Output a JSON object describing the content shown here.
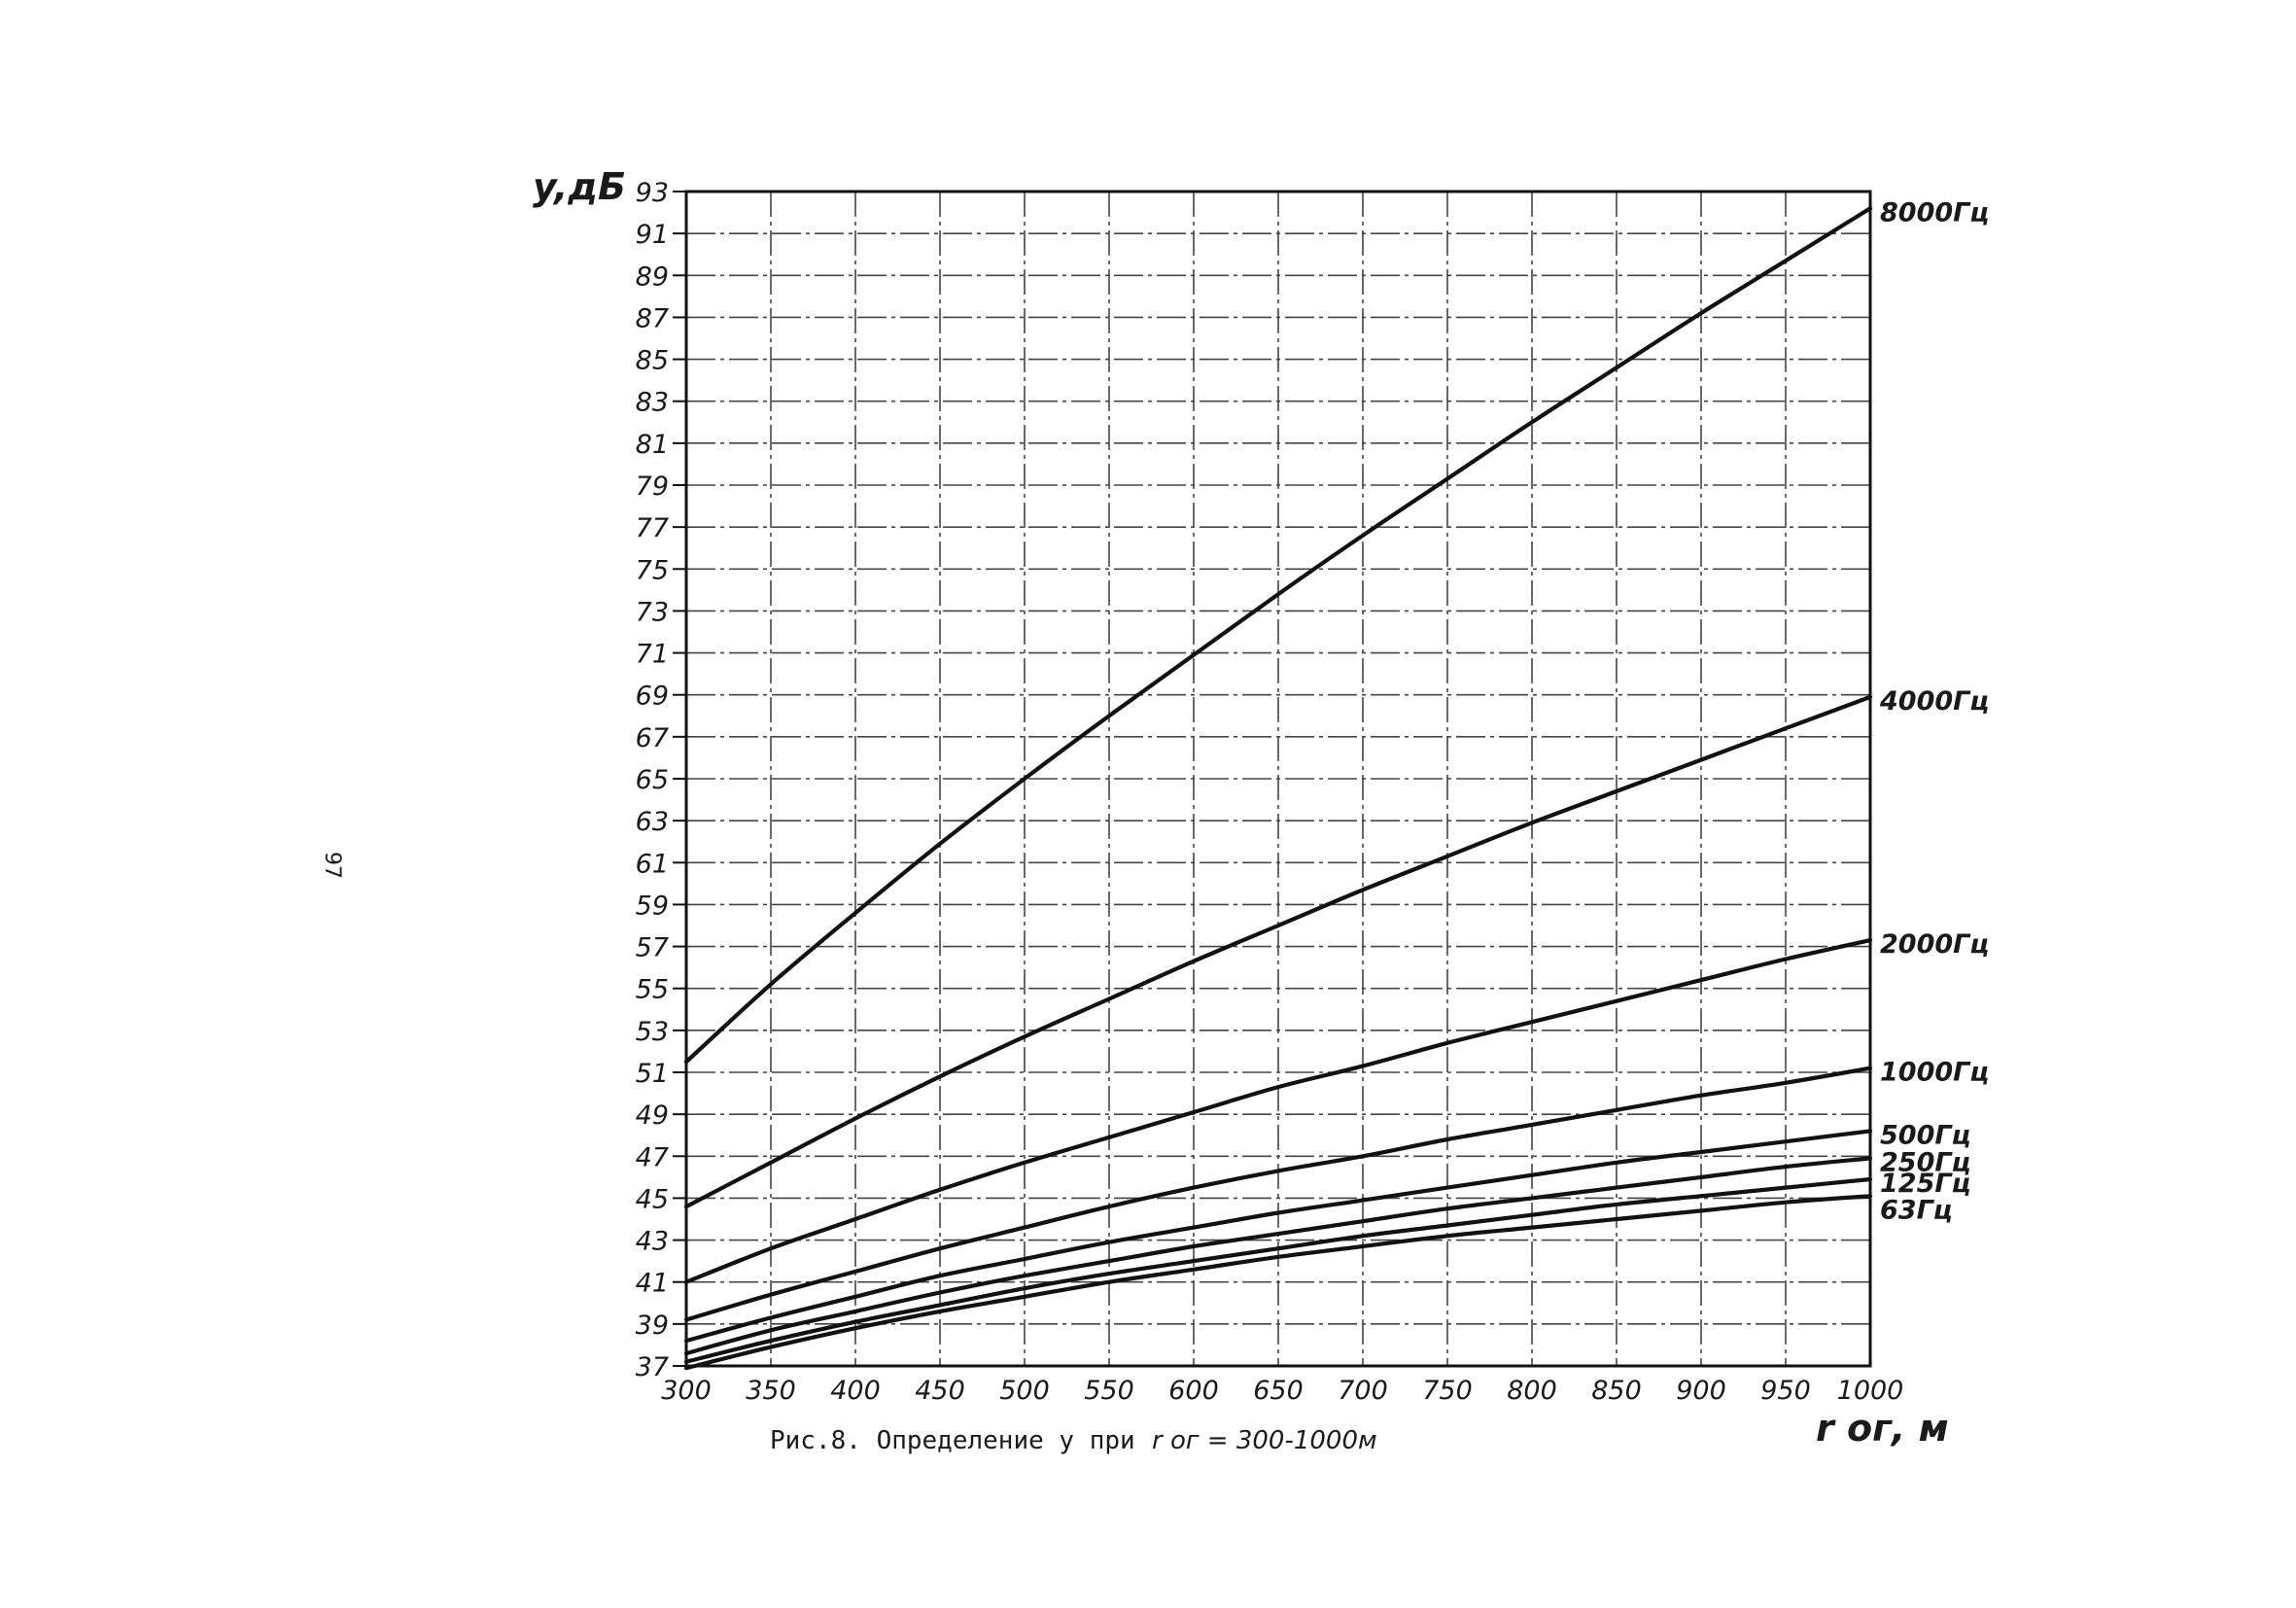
{
  "chart_data": {
    "type": "line",
    "ylabel": "y,дБ",
    "xlabel": "r ог, м",
    "caption": {
      "prefix": "Рис.8. Определение y при",
      "formula": "r ог = 300-1000м"
    },
    "page_number": "97",
    "xlim": [
      300,
      1000
    ],
    "ylim": [
      37,
      93
    ],
    "x_ticks": [
      300,
      350,
      400,
      450,
      500,
      550,
      600,
      650,
      700,
      750,
      800,
      850,
      900,
      950,
      1000
    ],
    "y_ticks": [
      37,
      39,
      41,
      43,
      45,
      47,
      49,
      51,
      53,
      55,
      57,
      59,
      61,
      63,
      65,
      67,
      69,
      71,
      73,
      75,
      77,
      79,
      81,
      83,
      85,
      87,
      89,
      91,
      93
    ],
    "grid": true,
    "x": [
      300,
      350,
      400,
      450,
      500,
      550,
      600,
      650,
      700,
      750,
      800,
      850,
      900,
      950,
      1000
    ],
    "series": [
      {
        "name": "8000Гц",
        "values": [
          51.5,
          55.2,
          58.6,
          61.9,
          65.0,
          68.0,
          70.9,
          73.8,
          76.6,
          79.3,
          82.0,
          84.6,
          87.2,
          89.7,
          92.2
        ]
      },
      {
        "name": "4000Гц",
        "values": [
          44.6,
          46.7,
          48.8,
          50.8,
          52.7,
          54.5,
          56.3,
          58.0,
          59.7,
          61.3,
          62.9,
          64.4,
          65.9,
          67.4,
          68.9
        ]
      },
      {
        "name": "2000Гц",
        "values": [
          41.0,
          42.6,
          44.0,
          45.4,
          46.7,
          47.9,
          49.1,
          50.3,
          51.3,
          52.4,
          53.4,
          54.4,
          55.4,
          56.4,
          57.3
        ]
      },
      {
        "name": "1000Гц",
        "values": [
          39.2,
          40.4,
          41.5,
          42.6,
          43.6,
          44.6,
          45.5,
          46.3,
          47.0,
          47.8,
          48.5,
          49.2,
          49.9,
          50.5,
          51.2
        ]
      },
      {
        "name": "500Гц",
        "values": [
          38.2,
          39.3,
          40.3,
          41.3,
          42.1,
          42.9,
          43.6,
          44.3,
          44.9,
          45.5,
          46.1,
          46.7,
          47.2,
          47.7,
          48.2
        ]
      },
      {
        "name": "250Гц",
        "values": [
          37.6,
          38.7,
          39.6,
          40.5,
          41.3,
          42.0,
          42.7,
          43.3,
          43.9,
          44.5,
          45.0,
          45.5,
          46.0,
          46.5,
          46.9
        ]
      },
      {
        "name": "125Гц",
        "values": [
          37.2,
          38.2,
          39.1,
          39.9,
          40.7,
          41.4,
          42.0,
          42.6,
          43.2,
          43.7,
          44.2,
          44.7,
          45.1,
          45.5,
          45.9
        ]
      },
      {
        "name": "63Гц",
        "values": [
          36.9,
          37.9,
          38.8,
          39.6,
          40.3,
          41.0,
          41.6,
          42.2,
          42.7,
          43.2,
          43.6,
          44.0,
          44.4,
          44.8,
          45.1
        ]
      }
    ]
  }
}
